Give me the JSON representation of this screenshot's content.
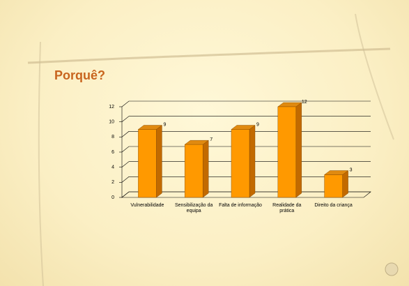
{
  "chart_data": {
    "type": "bar3d",
    "title": "Porquê?",
    "categories": [
      "Vulnerabilidade",
      "Sensibilização da equipa",
      "Falta de informação",
      "Realidade da prática",
      "Direito da criança"
    ],
    "values": [
      9,
      7,
      9,
      12,
      3
    ],
    "color": "#ff9900",
    "ylim": [
      0,
      12
    ],
    "yticks": [
      0,
      2,
      4,
      6,
      8,
      10,
      12
    ],
    "grid": true
  }
}
